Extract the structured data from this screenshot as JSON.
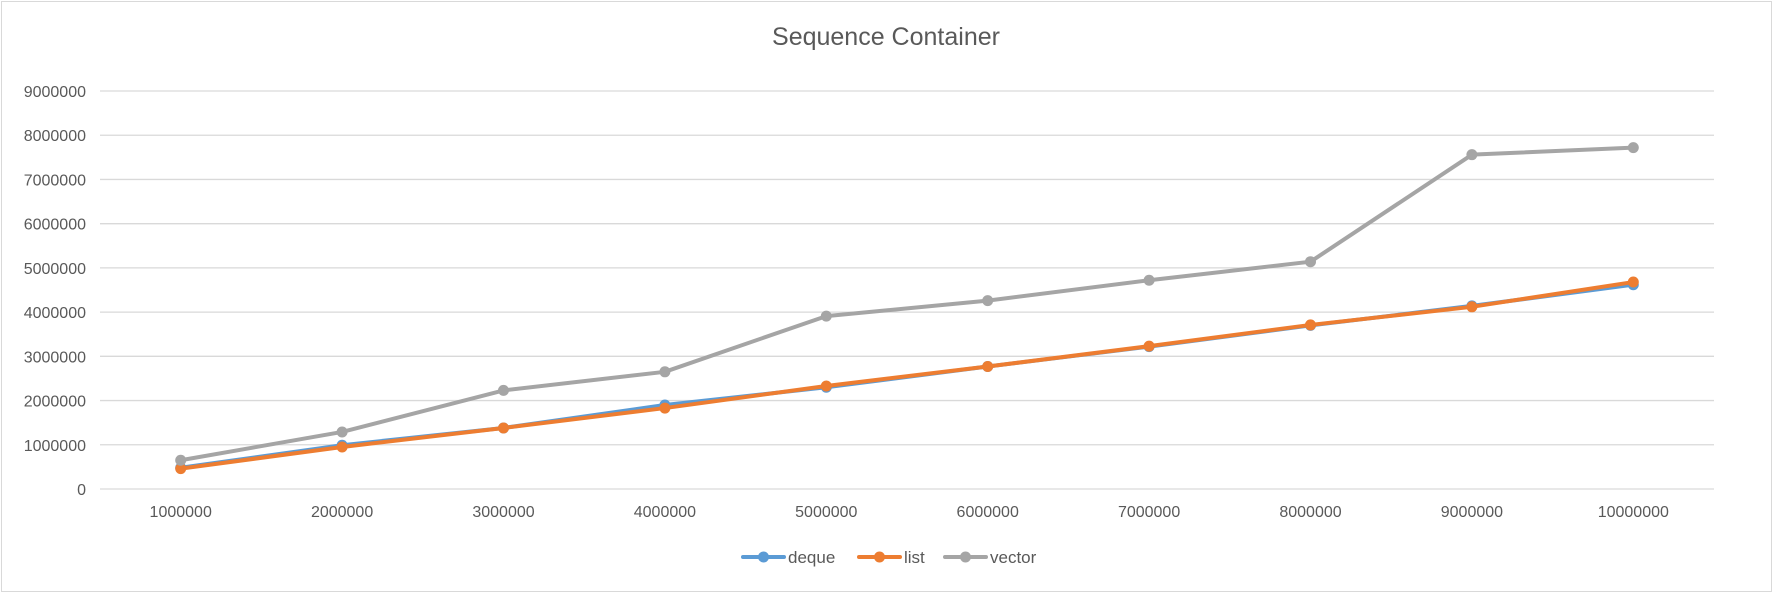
{
  "chart_data": {
    "type": "line",
    "title": "Sequence Container",
    "xlabel": "",
    "ylabel": "",
    "categories": [
      "1000000",
      "2000000",
      "3000000",
      "4000000",
      "5000000",
      "6000000",
      "7000000",
      "8000000",
      "9000000",
      "10000000"
    ],
    "ylim": [
      0,
      9000000
    ],
    "yticks": [
      "0",
      "1000000",
      "2000000",
      "3000000",
      "4000000",
      "5000000",
      "6000000",
      "7000000",
      "8000000",
      "9000000"
    ],
    "grid": true,
    "legend_position": "bottom",
    "series": [
      {
        "name": "deque",
        "color": "#5b9bd5",
        "values": [
          480000,
          990000,
          1380000,
          1900000,
          2300000,
          2770000,
          3220000,
          3700000,
          4140000,
          4620000
        ]
      },
      {
        "name": "list",
        "color": "#ed7d31",
        "values": [
          460000,
          950000,
          1380000,
          1830000,
          2330000,
          2770000,
          3230000,
          3710000,
          4120000,
          4680000
        ]
      },
      {
        "name": "vector",
        "color": "#a5a5a5",
        "values": [
          650000,
          1290000,
          2230000,
          2650000,
          3910000,
          4260000,
          4720000,
          5140000,
          7560000,
          7720000
        ]
      }
    ]
  }
}
